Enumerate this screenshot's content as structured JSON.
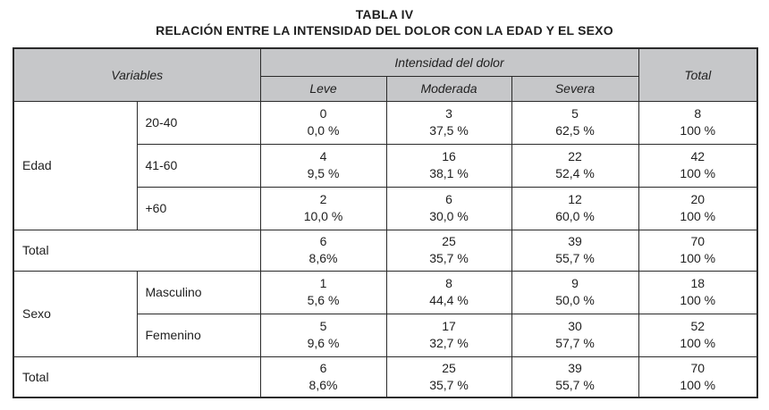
{
  "title": "TABLA IV",
  "subtitle": "RELACIÓN ENTRE LA INTENSIDAD DEL DOLOR CON LA EDAD Y EL SEXO",
  "colors": {
    "header_bg": "#c6c7c9",
    "border": "#2a2a2a",
    "text": "#1f1f1f",
    "page_bg": "#ffffff"
  },
  "table": {
    "header": {
      "variables": "Variables",
      "intensity": "Intensidad del dolor",
      "columns": [
        "Leve",
        "Moderada",
        "Severa"
      ],
      "total": "Total"
    },
    "sections": [
      {
        "group": "Edad",
        "rows": [
          {
            "label": "20-40",
            "cells": [
              {
                "n": "0",
                "p": "0,0 %"
              },
              {
                "n": "3",
                "p": "37,5 %"
              },
              {
                "n": "5",
                "p": "62,5 %"
              },
              {
                "n": "8",
                "p": "100 %"
              }
            ]
          },
          {
            "label": "41-60",
            "cells": [
              {
                "n": "4",
                "p": "9,5 %"
              },
              {
                "n": "16",
                "p": "38,1 %"
              },
              {
                "n": "22",
                "p": "52,4 %"
              },
              {
                "n": "42",
                "p": "100 %"
              }
            ]
          },
          {
            "label": "+60",
            "cells": [
              {
                "n": "2",
                "p": "10,0 %"
              },
              {
                "n": "6",
                "p": "30,0 %"
              },
              {
                "n": "12",
                "p": "60,0 %"
              },
              {
                "n": "20",
                "p": "100 %"
              }
            ]
          }
        ],
        "total": {
          "label": "Total",
          "cells": [
            {
              "n": "6",
              "p": "8,6%"
            },
            {
              "n": "25",
              "p": "35,7 %"
            },
            {
              "n": "39",
              "p": "55,7 %"
            },
            {
              "n": "70",
              "p": "100 %"
            }
          ]
        }
      },
      {
        "group": "Sexo",
        "rows": [
          {
            "label": "Masculino",
            "cells": [
              {
                "n": "1",
                "p": "5,6 %"
              },
              {
                "n": "8",
                "p": "44,4 %"
              },
              {
                "n": "9",
                "p": "50,0 %"
              },
              {
                "n": "18",
                "p": "100 %"
              }
            ]
          },
          {
            "label": "Femenino",
            "cells": [
              {
                "n": "5",
                "p": "9,6 %"
              },
              {
                "n": "17",
                "p": "32,7 %"
              },
              {
                "n": "30",
                "p": "57,7 %"
              },
              {
                "n": "52",
                "p": "100 %"
              }
            ]
          }
        ],
        "total": {
          "label": "Total",
          "cells": [
            {
              "n": "6",
              "p": "8,6%"
            },
            {
              "n": "25",
              "p": "35,7 %"
            },
            {
              "n": "39",
              "p": "55,7 %"
            },
            {
              "n": "70",
              "p": "100 %"
            }
          ]
        }
      }
    ]
  }
}
